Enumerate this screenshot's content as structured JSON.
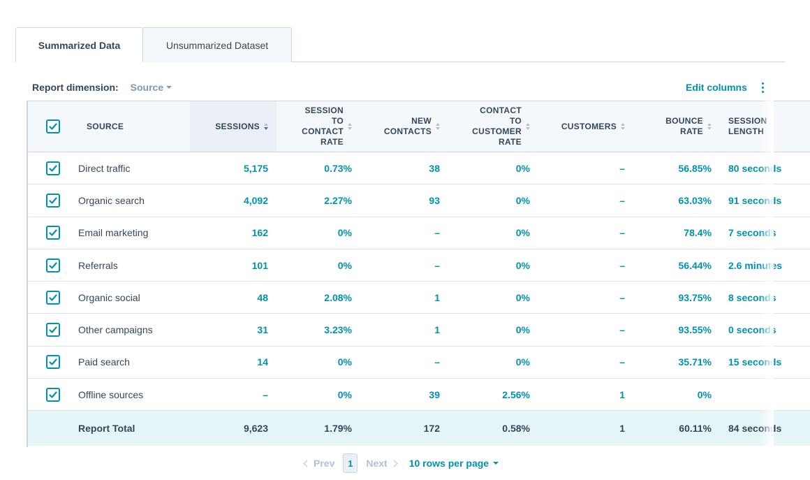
{
  "tabs": [
    {
      "label": "Summarized Data",
      "active": true
    },
    {
      "label": "Unsummarized Dataset",
      "active": false
    }
  ],
  "dimension": {
    "label": "Report dimension:",
    "value": "Source"
  },
  "toolbar": {
    "edit_columns": "Edit columns",
    "more_icon": "kebab-icon"
  },
  "columns": [
    {
      "key": "source",
      "label": "SOURCE"
    },
    {
      "key": "sessions",
      "label": "SESSIONS",
      "sorted": true
    },
    {
      "key": "s2c",
      "label": "SESSION TO CONTACT RATE"
    },
    {
      "key": "new_contacts",
      "label": "NEW CONTACTS"
    },
    {
      "key": "c2c",
      "label": "CONTACT TO CUSTOMER RATE"
    },
    {
      "key": "customers",
      "label": "CUSTOMERS"
    },
    {
      "key": "bounce",
      "label": "BOUNCE RATE"
    },
    {
      "key": "session_length",
      "label": "SESSION LENGTH"
    }
  ],
  "header_lines": {
    "sessions": "SESSIONS",
    "s2c": [
      "SESSION",
      "TO",
      "CONTACT",
      "RATE"
    ],
    "new_contacts": [
      "NEW",
      "CONTACTS"
    ],
    "c2c": [
      "CONTACT",
      "TO",
      "CUSTOMER",
      "RATE"
    ],
    "customers": "CUSTOMERS",
    "bounce": [
      "BOUNCE",
      "RATE"
    ],
    "session_length": [
      "SESSION",
      "LENGTH"
    ]
  },
  "rows": [
    {
      "source": "Direct traffic",
      "sessions": "5,175",
      "s2c": "0.73%",
      "new_contacts": "38",
      "c2c": "0%",
      "customers": "–",
      "bounce": "56.85%",
      "session_length": "80 seconds",
      "checked": true
    },
    {
      "source": "Organic search",
      "sessions": "4,092",
      "s2c": "2.27%",
      "new_contacts": "93",
      "c2c": "0%",
      "customers": "–",
      "bounce": "63.03%",
      "session_length": "91 seconds",
      "checked": true
    },
    {
      "source": "Email marketing",
      "sessions": "162",
      "s2c": "0%",
      "new_contacts": "–",
      "c2c": "0%",
      "customers": "–",
      "bounce": "78.4%",
      "session_length": "7 seconds",
      "checked": true
    },
    {
      "source": "Referrals",
      "sessions": "101",
      "s2c": "0%",
      "new_contacts": "–",
      "c2c": "0%",
      "customers": "–",
      "bounce": "56.44%",
      "session_length": "2.6 minutes",
      "checked": true
    },
    {
      "source": "Organic social",
      "sessions": "48",
      "s2c": "2.08%",
      "new_contacts": "1",
      "c2c": "0%",
      "customers": "–",
      "bounce": "93.75%",
      "session_length": "8 seconds",
      "checked": true
    },
    {
      "source": "Other campaigns",
      "sessions": "31",
      "s2c": "3.23%",
      "new_contacts": "1",
      "c2c": "0%",
      "customers": "–",
      "bounce": "93.55%",
      "session_length": "0 seconds",
      "checked": true
    },
    {
      "source": "Paid search",
      "sessions": "14",
      "s2c": "0%",
      "new_contacts": "–",
      "c2c": "0%",
      "customers": "–",
      "bounce": "35.71%",
      "session_length": "15 seconds",
      "checked": true
    },
    {
      "source": "Offline sources",
      "sessions": "–",
      "s2c": "0%",
      "new_contacts": "39",
      "c2c": "2.56%",
      "customers": "1",
      "bounce": "0%",
      "session_length": "",
      "checked": true
    }
  ],
  "total": {
    "source": "Report Total",
    "sessions": "9,623",
    "s2c": "1.79%",
    "new_contacts": "172",
    "c2c": "0.58%",
    "customers": "1",
    "bounce": "60.11%",
    "session_length": "84 seconds"
  },
  "pagination": {
    "prev": "Prev",
    "page": "1",
    "next": "Next",
    "rows_per_page": "10 rows per page"
  }
}
